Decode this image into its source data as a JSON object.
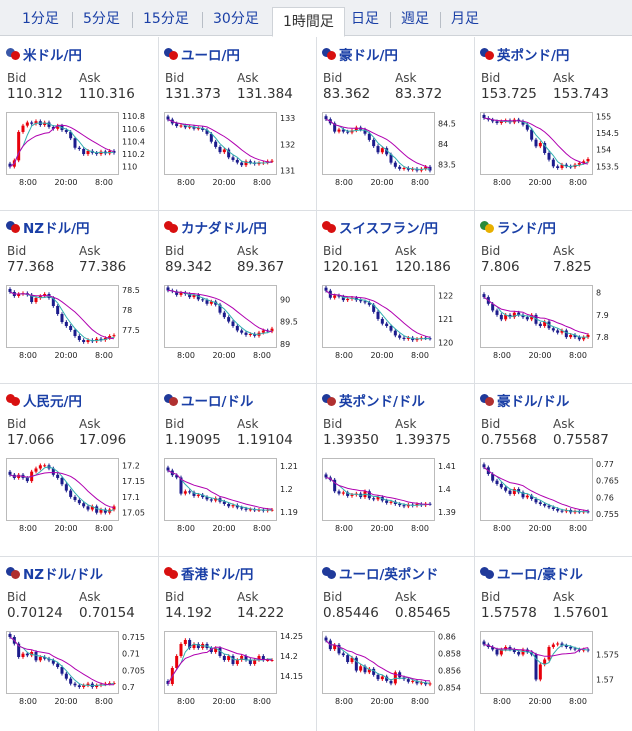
{
  "tabs": [
    {
      "label": "1分足",
      "active": false
    },
    {
      "label": "5分足",
      "active": false
    },
    {
      "label": "15分足",
      "active": false
    },
    {
      "label": "30分足",
      "active": false
    },
    {
      "label": "1時間足",
      "active": true
    },
    {
      "label": "日足",
      "active": false
    },
    {
      "label": "週足",
      "active": false
    },
    {
      "label": "月足",
      "active": false
    }
  ],
  "labels": {
    "bid": "Bid",
    "ask": "Ask"
  },
  "colors": {
    "up": "#e8000b",
    "down": "#1c1c8c",
    "ma_fast": "#33b0b0",
    "ma_slow": "#b000b0",
    "link": "#1a3fa6",
    "border": "#bbbbbb"
  },
  "chart_data": [
    {
      "type": "candlestick",
      "pair": "米ドル/円",
      "flags": [
        "#3a58a8",
        "#d81010"
      ],
      "bid": "110.312",
      "ask": "110.316",
      "x_ticks": [
        "8:00",
        "20:00",
        "8:00"
      ],
      "y_ticks": [
        "110.8",
        "110.6",
        "110.4",
        "110.2",
        "110"
      ],
      "ylim": [
        109.9,
        110.85
      ],
      "closes": [
        110.0,
        110.1,
        110.55,
        110.65,
        110.7,
        110.68,
        110.72,
        110.66,
        110.7,
        110.63,
        110.6,
        110.65,
        110.58,
        110.55,
        110.45,
        110.3,
        110.28,
        110.2,
        110.25,
        110.22,
        110.2,
        110.24,
        110.21,
        110.25,
        110.22
      ]
    },
    {
      "type": "candlestick",
      "pair": "ユーロ/円",
      "flags": [
        "#203a9a",
        "#d81010"
      ],
      "bid": "131.373",
      "ask": "131.384",
      "x_ticks": [
        "8:00",
        "20:00",
        "8:00"
      ],
      "y_ticks": [
        "133",
        "132",
        "131"
      ],
      "ylim": [
        130.9,
        133.2
      ],
      "closes": [
        132.95,
        132.8,
        132.7,
        132.72,
        132.65,
        132.68,
        132.6,
        132.62,
        132.55,
        132.4,
        132.1,
        131.9,
        131.7,
        131.8,
        131.5,
        131.4,
        131.3,
        131.2,
        131.35,
        131.3,
        131.25,
        131.28,
        131.3,
        131.35,
        131.37
      ]
    },
    {
      "type": "candlestick",
      "pair": "豪ドル/円",
      "flags": [
        "#203a9a",
        "#d81010"
      ],
      "bid": "83.362",
      "ask": "83.372",
      "x_ticks": [
        "8:00",
        "20:00",
        "8:00"
      ],
      "y_ticks": [
        "84.5",
        "84",
        "83.5"
      ],
      "ylim": [
        83.3,
        84.75
      ],
      "closes": [
        84.6,
        84.5,
        84.3,
        84.35,
        84.3,
        84.28,
        84.33,
        84.4,
        84.35,
        84.25,
        84.1,
        83.95,
        83.8,
        83.9,
        83.75,
        83.55,
        83.45,
        83.4,
        83.42,
        83.38,
        83.4,
        83.36,
        83.4,
        83.45,
        83.36
      ]
    },
    {
      "type": "candlestick",
      "pair": "英ポンド/円",
      "flags": [
        "#203a9a",
        "#d81010"
      ],
      "bid": "153.725",
      "ask": "153.743",
      "x_ticks": [
        "8:00",
        "20:00",
        "8:00"
      ],
      "y_ticks": [
        "155",
        "154.5",
        "154",
        "153.5"
      ],
      "ylim": [
        153.3,
        155.1
      ],
      "closes": [
        154.95,
        154.9,
        154.85,
        154.8,
        154.85,
        154.88,
        154.82,
        154.9,
        154.85,
        154.75,
        154.6,
        154.3,
        154.1,
        154.2,
        153.9,
        153.7,
        153.5,
        153.45,
        153.55,
        153.5,
        153.48,
        153.55,
        153.6,
        153.65,
        153.72
      ]
    },
    {
      "type": "candlestick",
      "pair": "NZドル/円",
      "flags": [
        "#203a9a",
        "#d81010"
      ],
      "bid": "77.368",
      "ask": "77.386",
      "x_ticks": [
        "8:00",
        "20:00",
        "8:00"
      ],
      "y_ticks": [
        "78.5",
        "78",
        "77.5"
      ],
      "ylim": [
        77.1,
        78.6
      ],
      "closes": [
        78.45,
        78.35,
        78.4,
        78.42,
        78.38,
        78.2,
        78.3,
        78.35,
        78.4,
        78.3,
        78.1,
        77.9,
        77.7,
        77.6,
        77.5,
        77.35,
        77.25,
        77.2,
        77.25,
        77.22,
        77.28,
        77.25,
        77.3,
        77.35,
        77.37
      ]
    },
    {
      "type": "candlestick",
      "pair": "カナダドル/円",
      "flags": [
        "#d81010",
        "#d81010"
      ],
      "bid": "89.342",
      "ask": "89.367",
      "x_ticks": [
        "8:00",
        "20:00",
        "8:00"
      ],
      "y_ticks": [
        "90",
        "89.5",
        "89"
      ],
      "ylim": [
        88.95,
        90.3
      ],
      "closes": [
        90.2,
        90.18,
        90.1,
        90.15,
        90.12,
        90.05,
        90.1,
        90.0,
        89.98,
        89.9,
        89.95,
        89.88,
        89.7,
        89.6,
        89.5,
        89.4,
        89.3,
        89.25,
        89.2,
        89.22,
        89.18,
        89.25,
        89.3,
        89.28,
        89.34
      ]
    },
    {
      "type": "candlestick",
      "pair": "スイスフラン/円",
      "flags": [
        "#d81010",
        "#d81010"
      ],
      "bid": "120.161",
      "ask": "120.186",
      "x_ticks": [
        "8:00",
        "20:00",
        "8:00"
      ],
      "y_ticks": [
        "122",
        "121",
        "120"
      ],
      "ylim": [
        119.85,
        122.4
      ],
      "closes": [
        122.2,
        121.9,
        122.0,
        121.95,
        121.8,
        121.85,
        121.9,
        121.8,
        121.75,
        121.7,
        121.6,
        121.3,
        121.0,
        120.8,
        120.7,
        120.5,
        120.3,
        120.2,
        120.15,
        120.2,
        120.1,
        120.15,
        120.2,
        120.18,
        120.16
      ]
    },
    {
      "type": "candlestick",
      "pair": "ランド/円",
      "flags": [
        "#2a8a3a",
        "#e8b000"
      ],
      "bid": "7.806",
      "ask": "7.825",
      "x_ticks": [
        "8:00",
        "20:00",
        "8:00"
      ],
      "y_ticks": [
        "8",
        "7.9",
        "7.8"
      ],
      "ylim": [
        7.76,
        8.03
      ],
      "closes": [
        7.98,
        7.95,
        7.92,
        7.9,
        7.88,
        7.9,
        7.89,
        7.91,
        7.9,
        7.89,
        7.88,
        7.9,
        7.86,
        7.85,
        7.87,
        7.84,
        7.83,
        7.82,
        7.83,
        7.8,
        7.81,
        7.8,
        7.79,
        7.8,
        7.81
      ]
    },
    {
      "type": "candlestick",
      "pair": "人民元/円",
      "flags": [
        "#d81010",
        "#d81010"
      ],
      "bid": "17.066",
      "ask": "17.096",
      "x_ticks": [
        "8:00",
        "20:00",
        "8:00"
      ],
      "y_ticks": [
        "17.2",
        "17.15",
        "17.1",
        "17.05"
      ],
      "ylim": [
        17.03,
        17.22
      ],
      "closes": [
        17.17,
        17.16,
        17.17,
        17.16,
        17.15,
        17.18,
        17.19,
        17.2,
        17.2,
        17.19,
        17.17,
        17.16,
        17.14,
        17.12,
        17.1,
        17.09,
        17.08,
        17.07,
        17.06,
        17.07,
        17.05,
        17.06,
        17.05,
        17.06,
        17.07
      ]
    },
    {
      "type": "candlestick",
      "pair": "ユーロ/ドル",
      "flags": [
        "#203a9a",
        "#b03030"
      ],
      "bid": "1.19095",
      "ask": "1.19104",
      "x_ticks": [
        "8:00",
        "20:00",
        "8:00"
      ],
      "y_ticks": [
        "1.21",
        "1.2",
        "1.19"
      ],
      "ylim": [
        1.187,
        1.213
      ],
      "closes": [
        1.208,
        1.206,
        1.205,
        1.198,
        1.199,
        1.1985,
        1.197,
        1.1975,
        1.1965,
        1.1955,
        1.195,
        1.196,
        1.1945,
        1.1935,
        1.1925,
        1.193,
        1.192,
        1.1915,
        1.191,
        1.1912,
        1.1908,
        1.191,
        1.1906,
        1.191,
        1.191
      ]
    },
    {
      "type": "candlestick",
      "pair": "英ポンド/ドル",
      "flags": [
        "#203a9a",
        "#b03030"
      ],
      "bid": "1.39350",
      "ask": "1.39375",
      "x_ticks": [
        "8:00",
        "20:00",
        "8:00"
      ],
      "y_ticks": [
        "1.41",
        "1.4",
        "1.39"
      ],
      "ylim": [
        1.387,
        1.413
      ],
      "closes": [
        1.405,
        1.404,
        1.399,
        1.398,
        1.3985,
        1.397,
        1.3975,
        1.398,
        1.3965,
        1.399,
        1.396,
        1.3955,
        1.3965,
        1.395,
        1.394,
        1.3945,
        1.3935,
        1.393,
        1.3925,
        1.3932,
        1.3928,
        1.3935,
        1.393,
        1.3936,
        1.3935
      ]
    },
    {
      "type": "candlestick",
      "pair": "豪ドル/ドル",
      "flags": [
        "#203a9a",
        "#b03030"
      ],
      "bid": "0.75568",
      "ask": "0.75587",
      "x_ticks": [
        "8:00",
        "20:00",
        "8:00"
      ],
      "y_ticks": [
        "0.77",
        "0.765",
        "0.76",
        "0.755"
      ],
      "ylim": [
        0.7535,
        0.7715
      ],
      "closes": [
        0.769,
        0.767,
        0.765,
        0.764,
        0.763,
        0.762,
        0.761,
        0.7625,
        0.7615,
        0.76,
        0.7605,
        0.7595,
        0.7585,
        0.758,
        0.7575,
        0.757,
        0.7565,
        0.756,
        0.7558,
        0.7562,
        0.7555,
        0.7558,
        0.7556,
        0.7558,
        0.7557
      ]
    },
    {
      "type": "candlestick",
      "pair": "NZドル/ドル",
      "flags": [
        "#203a9a",
        "#b03030"
      ],
      "bid": "0.70124",
      "ask": "0.70154",
      "x_ticks": [
        "8:00",
        "20:00",
        "8:00"
      ],
      "y_ticks": [
        "0.715",
        "0.71",
        "0.705",
        "0.7"
      ],
      "ylim": [
        0.6985,
        0.7165
      ],
      "closes": [
        0.715,
        0.713,
        0.709,
        0.71,
        0.7095,
        0.7105,
        0.708,
        0.709,
        0.7085,
        0.708,
        0.707,
        0.706,
        0.704,
        0.7025,
        0.701,
        0.7005,
        0.7,
        0.7005,
        0.701,
        0.7,
        0.7005,
        0.7008,
        0.701,
        0.7012,
        0.7012
      ]
    },
    {
      "type": "candlestick",
      "pair": "香港ドル/円",
      "flags": [
        "#d81010",
        "#d81010"
      ],
      "bid": "14.192",
      "ask": "14.222",
      "x_ticks": [
        "8:00",
        "20:00",
        "8:00"
      ],
      "y_ticks": [
        "14.25",
        "14.2",
        "14.15"
      ],
      "ylim": [
        14.11,
        14.26
      ],
      "closes": [
        14.13,
        14.17,
        14.2,
        14.23,
        14.24,
        14.22,
        14.23,
        14.22,
        14.23,
        14.22,
        14.21,
        14.22,
        14.2,
        14.19,
        14.2,
        14.18,
        14.19,
        14.2,
        14.19,
        14.18,
        14.19,
        14.2,
        14.19,
        14.19,
        14.19
      ]
    },
    {
      "type": "candlestick",
      "pair": "ユーロ/英ポンド",
      "flags": [
        "#203a9a",
        "#203a9a"
      ],
      "bid": "0.85446",
      "ask": "0.85465",
      "x_ticks": [
        "8:00",
        "20:00",
        "8:00"
      ],
      "y_ticks": [
        "0.86",
        "0.858",
        "0.856",
        "0.854"
      ],
      "ylim": [
        0.8535,
        0.8605
      ],
      "closes": [
        0.8595,
        0.8585,
        0.859,
        0.858,
        0.8578,
        0.857,
        0.8575,
        0.856,
        0.8565,
        0.8558,
        0.8562,
        0.8555,
        0.855,
        0.8553,
        0.8548,
        0.8545,
        0.8558,
        0.8552,
        0.855,
        0.8547,
        0.8548,
        0.8545,
        0.8546,
        0.8544,
        0.8545
      ]
    },
    {
      "type": "candlestick",
      "pair": "ユーロ/豪ドル",
      "flags": [
        "#203a9a",
        "#203a9a"
      ],
      "bid": "1.57578",
      "ask": "1.57601",
      "x_ticks": [
        "8:00",
        "20:00",
        "8:00"
      ],
      "y_ticks": [
        "1.575",
        "1.57"
      ],
      "ylim": [
        1.5675,
        1.5795
      ],
      "closes": [
        1.577,
        1.5765,
        1.576,
        1.575,
        1.576,
        1.5765,
        1.576,
        1.5755,
        1.575,
        1.576,
        1.5755,
        1.575,
        1.57,
        1.573,
        1.574,
        1.5765,
        1.577,
        1.5772,
        1.5768,
        1.5765,
        1.5762,
        1.576,
        1.5758,
        1.576,
        1.5758
      ]
    }
  ]
}
